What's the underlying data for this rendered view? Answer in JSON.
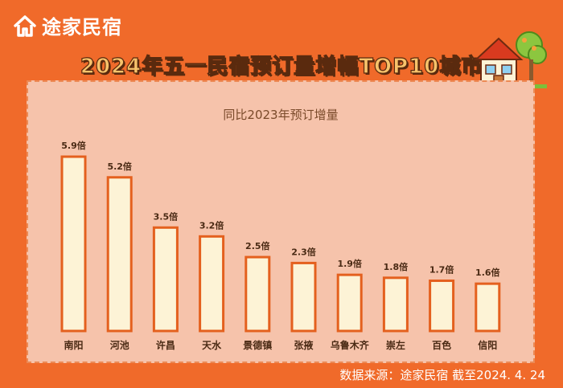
{
  "brand": {
    "name": "途家民宿"
  },
  "colors": {
    "background": "#f06a2a",
    "panel": "#f6c3ab",
    "bar_fill": "#fdf3d6",
    "bar_stroke": "#e4601e",
    "label": "#4a2a14"
  },
  "footer": {
    "source": "数据来源：途家民宿  截至2024. 4. 24"
  },
  "chart_data": {
    "type": "bar",
    "title": "2024年五一民宿预订量增幅TOP10城市",
    "subtitle": "同比2023年预订增量",
    "categories": [
      "南阳",
      "河池",
      "许昌",
      "天水",
      "景德镇",
      "张掖",
      "乌鲁木齐",
      "崇左",
      "百色",
      "信阳"
    ],
    "values": [
      5.9,
      5.2,
      3.5,
      3.2,
      2.5,
      2.3,
      1.9,
      1.8,
      1.7,
      1.6
    ],
    "value_labels": [
      "5.9倍",
      "5.2倍",
      "3.5倍",
      "3.2倍",
      "2.5倍",
      "2.3倍",
      "1.9倍",
      "1.8倍",
      "1.7倍",
      "1.6倍"
    ],
    "xlabel": "",
    "ylabel": "",
    "ylim": [
      0,
      6.2
    ],
    "grid": false,
    "legend": "none"
  }
}
